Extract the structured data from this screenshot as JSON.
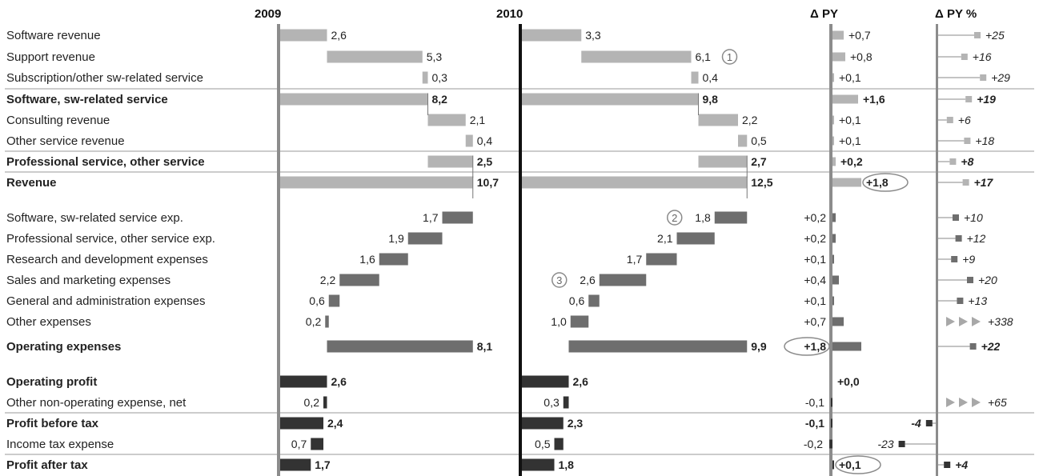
{
  "chart_data": {
    "type": "bar",
    "subtype": "waterfall-variance",
    "headers": {
      "y1": "2009",
      "y2": "2010",
      "dpy": "Δ PY",
      "dpyp": "Δ PY %"
    },
    "rows": [
      {
        "label": "Software revenue",
        "kind": "rev",
        "bold": false,
        "v09": 2.6,
        "t09": "2,6",
        "v10": 3.3,
        "t10": "3,3",
        "d": 0.7,
        "td": "+0,7",
        "p": 25,
        "tp": "+25"
      },
      {
        "label": "Support revenue",
        "kind": "rev",
        "bold": false,
        "v09": 5.3,
        "t09": "5,3",
        "v10": 6.1,
        "t10": "6,1",
        "d": 0.8,
        "td": "+0,8",
        "p": 16,
        "tp": "+16",
        "note10": "1"
      },
      {
        "label": "Subscription/other sw-related service",
        "kind": "rev",
        "bold": false,
        "v09": 0.3,
        "t09": "0,3",
        "v10": 0.4,
        "t10": "0,4",
        "d": 0.1,
        "td": "+0,1",
        "p": 29,
        "tp": "+29"
      },
      {
        "label": "Software, sw-related service",
        "kind": "sub",
        "bold": true,
        "v09": 8.2,
        "t09": "8,2",
        "v10": 9.8,
        "t10": "9,8",
        "d": 1.6,
        "td": "+1,6",
        "p": 19,
        "tp": "+19",
        "sep": true
      },
      {
        "label": "Consulting revenue",
        "kind": "rev",
        "bold": false,
        "v09": 2.1,
        "t09": "2,1",
        "v10": 2.2,
        "t10": "2,2",
        "d": 0.1,
        "td": "+0,1",
        "p": 6,
        "tp": "+6"
      },
      {
        "label": "Other service revenue",
        "kind": "rev",
        "bold": false,
        "v09": 0.4,
        "t09": "0,4",
        "v10": 0.5,
        "t10": "0,5",
        "d": 0.1,
        "td": "+0,1",
        "p": 18,
        "tp": "+18"
      },
      {
        "label": "Professional service, other service",
        "kind": "sub",
        "bold": true,
        "v09": 2.5,
        "t09": "2,5",
        "v10": 2.7,
        "t10": "2,7",
        "d": 0.2,
        "td": "+0,2",
        "p": 8,
        "tp": "+8",
        "sep": true
      },
      {
        "label": "Revenue",
        "kind": "total",
        "bold": true,
        "v09": 10.7,
        "t09": "10,7",
        "v10": 12.5,
        "t10": "12,5",
        "d": 1.8,
        "td": "+1,8",
        "p": 17,
        "tp": "+17",
        "sep": true,
        "circle_d": true
      },
      {
        "label": "Software, sw-related service exp.",
        "kind": "exp",
        "bold": false,
        "v09": 1.7,
        "t09": "1,7",
        "v10": 1.8,
        "t10": "1,8",
        "d": 0.2,
        "td": "+0,2",
        "p": 10,
        "tp": "+10",
        "note10": "2"
      },
      {
        "label": "Professional service, other service exp.",
        "kind": "exp",
        "bold": false,
        "v09": 1.9,
        "t09": "1,9",
        "v10": 2.1,
        "t10": "2,1",
        "d": 0.2,
        "td": "+0,2",
        "p": 12,
        "tp": "+12"
      },
      {
        "label": "Research and development expenses",
        "kind": "exp",
        "bold": false,
        "v09": 1.6,
        "t09": "1,6",
        "v10": 1.7,
        "t10": "1,7",
        "d": 0.1,
        "td": "+0,1",
        "p": 9,
        "tp": "+9"
      },
      {
        "label": "Sales and marketing expenses",
        "kind": "exp",
        "bold": false,
        "v09": 2.2,
        "t09": "2,2",
        "v10": 2.6,
        "t10": "2,6",
        "d": 0.4,
        "td": "+0,4",
        "p": 20,
        "tp": "+20",
        "note10": "3"
      },
      {
        "label": "General and administration expenses",
        "kind": "exp",
        "bold": false,
        "v09": 0.6,
        "t09": "0,6",
        "v10": 0.6,
        "t10": "0,6",
        "d": 0.1,
        "td": "+0,1",
        "p": 13,
        "tp": "+13"
      },
      {
        "label": "Other expenses",
        "kind": "exp",
        "bold": false,
        "v09": 0.2,
        "t09": "0,2",
        "v10": 1.0,
        "t10": "1,0",
        "d": 0.7,
        "td": "+0,7",
        "p": 338,
        "tp": "+338",
        "arrows": true
      },
      {
        "label": "Operating expenses",
        "kind": "opex",
        "bold": true,
        "v09": 8.1,
        "t09": "8,1",
        "v10": 9.9,
        "t10": "9,9",
        "d": 1.8,
        "td": "+1,8",
        "p": 22,
        "tp": "+22",
        "circle_d": true
      },
      {
        "label": "Operating profit",
        "kind": "result",
        "bold": true,
        "v09": 2.6,
        "t09": "2,6",
        "v10": 2.6,
        "t10": "2,6",
        "d": 0.0,
        "td": "+0,0",
        "p": null,
        "tp": ""
      },
      {
        "label": "Other non-operating expense, net",
        "kind": "neg",
        "bold": false,
        "v09": 0.2,
        "t09": "0,2",
        "v10": 0.3,
        "t10": "0,3",
        "d": -0.1,
        "td": "-0,1",
        "p": 65,
        "tp": "+65",
        "arrows": true
      },
      {
        "label": "Profit before tax",
        "kind": "result",
        "bold": true,
        "v09": 2.4,
        "t09": "2,4",
        "v10": 2.3,
        "t10": "2,3",
        "d": -0.1,
        "td": "-0,1",
        "p": -4,
        "tp": "-4",
        "sep": true
      },
      {
        "label": "Income tax expense",
        "kind": "neg",
        "bold": false,
        "v09": 0.7,
        "t09": "0,7",
        "v10": 0.5,
        "t10": "0,5",
        "d": -0.2,
        "td": "-0,2",
        "p": -23,
        "tp": "-23"
      },
      {
        "label": "Profit after tax",
        "kind": "result",
        "bold": true,
        "v09": 1.7,
        "t09": "1,7",
        "v10": 1.8,
        "t10": "1,8",
        "d": 0.1,
        "td": "+0,1",
        "p": 4,
        "tp": "+4",
        "sep": true,
        "circle_d": true
      }
    ],
    "colors": {
      "revenue": "#b4b4b4",
      "expense": "#6e6e6e",
      "result": "#333333",
      "axis": "#8c8c8c",
      "axis_2010": "#111111",
      "separator": "#9a9a9a"
    }
  }
}
